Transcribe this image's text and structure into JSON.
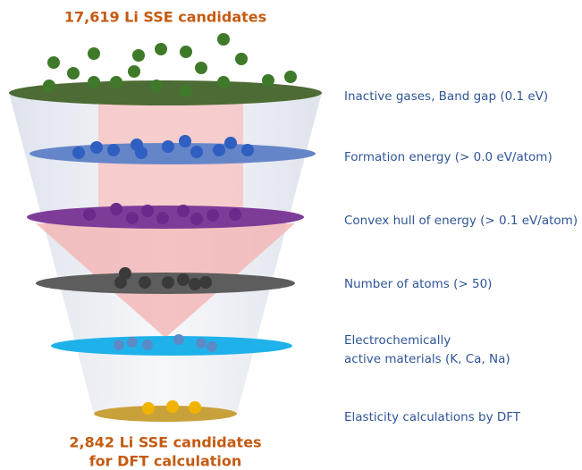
{
  "header": {
    "title": "17,619 Li SSE candidates"
  },
  "stages": [
    {
      "lines": [
        "Inactive gases, Band gap (0.1 eV)"
      ]
    },
    {
      "lines": [
        "Formation energy (> 0.0 eV/atom)"
      ]
    },
    {
      "lines": [
        "Convex hull of energy (> 0.1 eV/atom)"
      ]
    },
    {
      "lines": [
        "Number of atoms (> 50)"
      ]
    },
    {
      "lines": [
        "Electrochemically",
        "active materials (K, Ca, Na)"
      ]
    },
    {
      "lines": [
        "Elasticity calculations by DFT"
      ]
    }
  ],
  "footer": {
    "lines": [
      "2,842 Li SSE candidates",
      "for DFT calculation"
    ]
  }
}
